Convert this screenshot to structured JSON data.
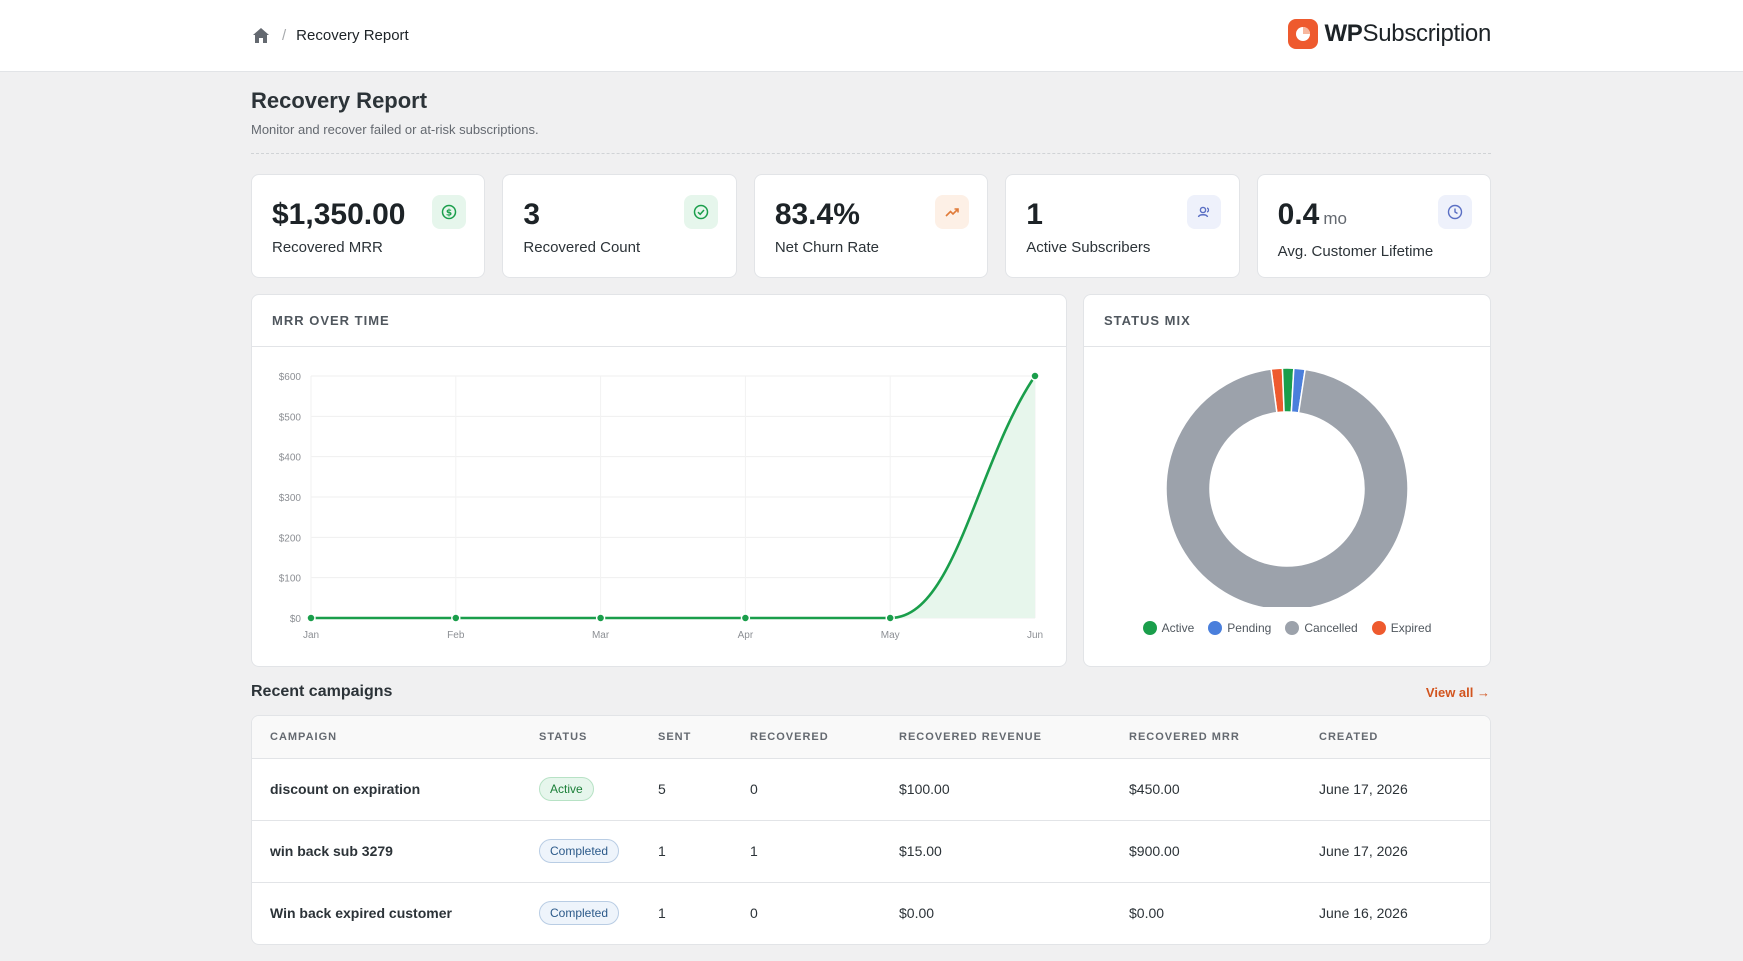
{
  "breadcrumb": {
    "home_icon": "home-icon",
    "current": "Recovery Report"
  },
  "brand": {
    "bold": "WP",
    "rest": "Subscription",
    "accent": "#ee5a2e"
  },
  "page": {
    "title": "Recovery Report",
    "subtitle": "Monitor and recover failed or at-risk subscriptions."
  },
  "stats": [
    {
      "value": "$1,350.00",
      "unit": "",
      "label": "Recovered MRR",
      "icon": "dollar-icon",
      "icon_bg": "#e6f6ec",
      "icon_color": "#1a9e4b"
    },
    {
      "value": "3",
      "unit": "",
      "label": "Recovered Count",
      "icon": "check-circle-icon",
      "icon_bg": "#e6f6ec",
      "icon_color": "#1a9e4b"
    },
    {
      "value": "83.4%",
      "unit": "",
      "label": "Net Churn Rate",
      "icon": "trending-up-icon",
      "icon_bg": "#fdf0e6",
      "icon_color": "#e07b39"
    },
    {
      "value": "1",
      "unit": "",
      "label": "Active Subscribers",
      "icon": "users-icon",
      "icon_bg": "#eef1fb",
      "icon_color": "#5a6fc4"
    },
    {
      "value": "0.4",
      "unit": "mo",
      "label": "Avg. Customer Lifetime",
      "icon": "clock-icon",
      "icon_bg": "#eef1fb",
      "icon_color": "#5a6fc4"
    }
  ],
  "mrr_chart": {
    "heading": "MRR OVER TIME",
    "chart_data": {
      "type": "area",
      "categories": [
        "Jan",
        "Feb",
        "Mar",
        "Apr",
        "May",
        "Jun"
      ],
      "series": [
        {
          "values": [
            0,
            0,
            0,
            0,
            0,
            600
          ]
        }
      ],
      "yticks": [
        "$0",
        "$100",
        "$200",
        "$300",
        "$400",
        "$500",
        "$600"
      ],
      "ylim": [
        0,
        600
      ],
      "grid": true,
      "line_color": "#1a9e4b",
      "fill_color": "#e7f6ec"
    }
  },
  "status_mix": {
    "heading": "STATUS MIX",
    "chart_data": {
      "type": "pie",
      "style": "donut",
      "slices": [
        {
          "name": "Expired",
          "value": 1.5,
          "color": "#ee5a2e"
        },
        {
          "name": "Active",
          "value": 1.5,
          "color": "#1a9e4b"
        },
        {
          "name": "Pending",
          "value": 1.5,
          "color": "#4a7fdc"
        },
        {
          "name": "Cancelled",
          "value": 95.5,
          "color": "#9ca2ab"
        }
      ],
      "legend_order": [
        "Active",
        "Pending",
        "Cancelled",
        "Expired"
      ],
      "legend": "bottom"
    }
  },
  "campaigns": {
    "title": "Recent campaigns",
    "view_all": "View all →",
    "columns": [
      "CAMPAIGN",
      "STATUS",
      "SENT",
      "RECOVERED",
      "RECOVERED REVENUE",
      "RECOVERED MRR",
      "CREATED"
    ],
    "rows": [
      {
        "name": "discount on expiration",
        "status": "Active",
        "sent": "5",
        "recovered": "0",
        "revenue": "$100.00",
        "mrr": "$450.00",
        "created": "June 17, 2026"
      },
      {
        "name": "win back sub 3279",
        "status": "Completed",
        "sent": "1",
        "recovered": "1",
        "revenue": "$15.00",
        "mrr": "$900.00",
        "created": "June 17, 2026"
      },
      {
        "name": "Win back expired customer",
        "status": "Completed",
        "sent": "1",
        "recovered": "0",
        "revenue": "$0.00",
        "mrr": "$0.00",
        "created": "June 16, 2026"
      }
    ]
  }
}
